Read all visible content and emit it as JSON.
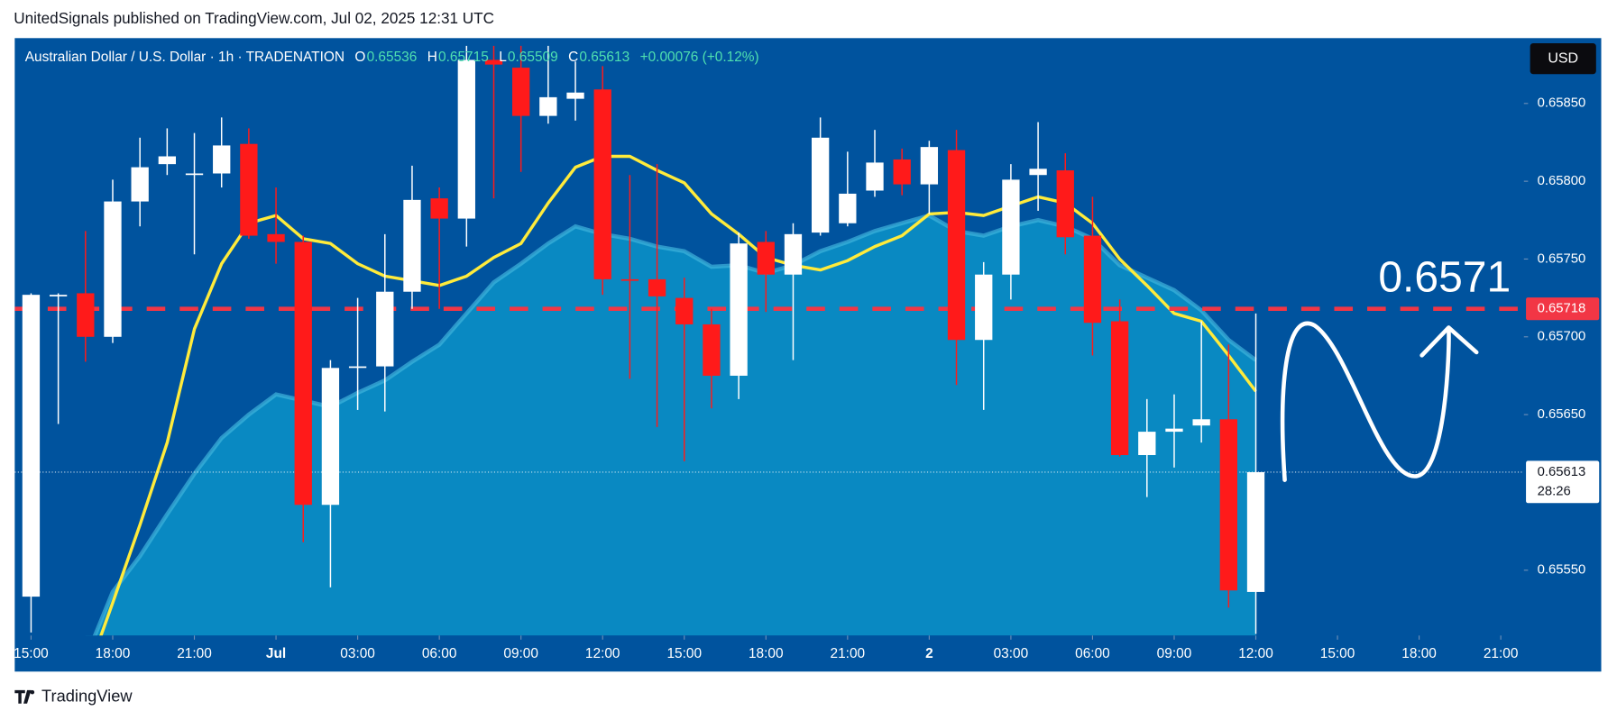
{
  "header": {
    "title": "UnitedSignals published on TradingView.com, Jul 02, 2025 12:31 UTC"
  },
  "chart_data": {
    "type": "candlestick",
    "symbol": "Australian Dollar / U.S. Dollar · 1h · TRADENATION",
    "ohlc": [
      {
        "label": "O",
        "value": "0.65536"
      },
      {
        "label": "H",
        "value": "0.65715"
      },
      {
        "label": "L",
        "value": "0.65509"
      },
      {
        "label": "C",
        "value": "0.65613"
      }
    ],
    "change": "+0.00076 (+0.12%)",
    "currency": "USD",
    "up_color": "#ffffff",
    "down_color": "#ff1a1a",
    "x": [
      0,
      1,
      2,
      3,
      4,
      5,
      6,
      7,
      8,
      9,
      10,
      11,
      12,
      13,
      14,
      15,
      16,
      17,
      18,
      19,
      20,
      21,
      22,
      23,
      24,
      25,
      26,
      27,
      28,
      29,
      30,
      31,
      32,
      33,
      34,
      35,
      36,
      37,
      38,
      39,
      40,
      41,
      42,
      43,
      44,
      45
    ],
    "open": [
      0.65533,
      0.65726,
      0.65728,
      0.657,
      0.65787,
      0.65811,
      0.65804,
      0.65805,
      0.65824,
      0.65766,
      0.65761,
      0.65592,
      0.6568,
      0.65681,
      0.65729,
      0.65789,
      0.65776,
      0.65878,
      0.65873,
      0.65842,
      0.65853,
      0.65859,
      0.65737,
      0.65737,
      0.65725,
      0.65708,
      0.65675,
      0.65761,
      0.6574,
      0.65767,
      0.65773,
      0.65794,
      0.65814,
      0.65798,
      0.6582,
      0.65698,
      0.6574,
      0.65804,
      0.65807,
      0.65765,
      0.6571,
      0.65624,
      0.65639,
      0.65643,
      0.65647,
      0.65536
    ],
    "high": [
      0.65728,
      0.65728,
      0.65768,
      0.65801,
      0.65828,
      0.65834,
      0.65831,
      0.65841,
      0.65834,
      0.65796,
      0.65765,
      0.65685,
      0.65725,
      0.65766,
      0.6581,
      0.65796,
      0.65887,
      0.65887,
      0.65887,
      0.65887,
      0.65877,
      0.65874,
      0.65804,
      0.65811,
      0.65738,
      0.65718,
      0.65767,
      0.65768,
      0.65773,
      0.65841,
      0.65819,
      0.65833,
      0.65821,
      0.65826,
      0.65833,
      0.65748,
      0.65811,
      0.65838,
      0.65818,
      0.6579,
      0.65724,
      0.6566,
      0.65663,
      0.6571,
      0.65695,
      0.65715
    ],
    "low": [
      0.6551,
      0.65644,
      0.65684,
      0.65696,
      0.65771,
      0.65804,
      0.65753,
      0.65796,
      0.65763,
      0.65747,
      0.65568,
      0.65539,
      0.65653,
      0.65652,
      0.65718,
      0.65718,
      0.65758,
      0.65789,
      0.65806,
      0.65837,
      0.65839,
      0.65727,
      0.65673,
      0.65642,
      0.6562,
      0.65654,
      0.6566,
      0.65716,
      0.65685,
      0.65765,
      0.65771,
      0.6579,
      0.65791,
      0.65779,
      0.65669,
      0.65653,
      0.65724,
      0.65781,
      0.65753,
      0.65688,
      0.65623,
      0.65597,
      0.65616,
      0.65632,
      0.65526,
      0.65509
    ],
    "close": [
      0.65727,
      0.65727,
      0.657,
      0.65787,
      0.65809,
      0.65816,
      0.65805,
      0.65823,
      0.65765,
      0.65761,
      0.65592,
      0.6568,
      0.65681,
      0.65729,
      0.65788,
      0.65776,
      0.65878,
      0.65875,
      0.65842,
      0.65854,
      0.65857,
      0.65737,
      0.65736,
      0.65726,
      0.65708,
      0.65675,
      0.6576,
      0.6574,
      0.65766,
      0.65828,
      0.65792,
      0.65812,
      0.65798,
      0.65822,
      0.65698,
      0.6574,
      0.65801,
      0.65808,
      0.65764,
      0.65709,
      0.65624,
      0.65639,
      0.65641,
      0.65647,
      0.65537,
      0.65613
    ],
    "indicators": [
      {
        "kind": "area",
        "color": "#3fb4dc",
        "fill": "#0a93c8",
        "values": [
          null,
          null,
          0.65493,
          0.65536,
          0.65559,
          0.65586,
          0.65612,
          0.65635,
          0.6565,
          0.65663,
          0.65659,
          0.65655,
          0.65664,
          0.65672,
          0.65684,
          0.65695,
          0.65715,
          0.65735,
          0.65747,
          0.6576,
          0.65771,
          0.65766,
          0.65763,
          0.65758,
          0.65755,
          0.65745,
          0.65746,
          0.65741,
          0.65746,
          0.65755,
          0.65761,
          0.65768,
          0.65773,
          0.65778,
          0.65768,
          0.65765,
          0.65771,
          0.65775,
          0.65771,
          0.65763,
          0.65746,
          0.65738,
          0.6573,
          0.65717,
          0.65698,
          0.65685
        ]
      },
      {
        "kind": "line",
        "color": "#ffeb3b",
        "values": [
          null,
          null,
          0.6548,
          0.65529,
          0.65579,
          0.65632,
          0.65705,
          0.65747,
          0.65773,
          0.65778,
          0.65763,
          0.6576,
          0.65747,
          0.65739,
          0.65736,
          0.65733,
          0.65739,
          0.65751,
          0.6576,
          0.65786,
          0.65809,
          0.65816,
          0.65816,
          0.65807,
          0.65799,
          0.65779,
          0.65766,
          0.65751,
          0.65746,
          0.65743,
          0.65749,
          0.65758,
          0.65765,
          0.65779,
          0.6578,
          0.65778,
          0.65784,
          0.6579,
          0.65786,
          0.65773,
          0.6575,
          0.65733,
          0.65715,
          0.6571,
          0.65688,
          0.65665
        ]
      }
    ],
    "xlim": [
      -0.6,
      54.85
    ],
    "xticks": [
      {
        "value": 0,
        "label": "15:00"
      },
      {
        "value": 3,
        "label": "18:00"
      },
      {
        "value": 6,
        "label": "21:00"
      },
      {
        "value": 9,
        "label": "Jul"
      },
      {
        "value": 12,
        "label": "03:00"
      },
      {
        "value": 15,
        "label": "06:00"
      },
      {
        "value": 18,
        "label": "09:00"
      },
      {
        "value": 21,
        "label": "12:00"
      },
      {
        "value": 24,
        "label": "15:00"
      },
      {
        "value": 27,
        "label": "18:00"
      },
      {
        "value": 30,
        "label": "21:00"
      },
      {
        "value": 33,
        "label": "2"
      },
      {
        "value": 36,
        "label": "03:00"
      },
      {
        "value": 39,
        "label": "06:00"
      },
      {
        "value": 42,
        "label": "09:00"
      },
      {
        "value": 45,
        "label": "12:00"
      },
      {
        "value": 48,
        "label": "15:00"
      },
      {
        "value": 51,
        "label": "18:00"
      },
      {
        "value": 54,
        "label": "21:00"
      }
    ],
    "ylim": [
      0.65508,
      0.65892
    ],
    "yticks": [
      {
        "value": 0.6585,
        "label": "0.65850"
      },
      {
        "value": 0.658,
        "label": "0.65800"
      },
      {
        "value": 0.6575,
        "label": "0.65750"
      },
      {
        "value": 0.657,
        "label": "0.65700"
      },
      {
        "value": 0.6565,
        "label": "0.65650"
      },
      {
        "value": 0.6555,
        "label": "0.65550"
      }
    ],
    "hline": {
      "value": 0.65718,
      "label": "0.65718",
      "color": "#f23645"
    },
    "last_price": {
      "value": 0.65613,
      "label": "0.65613",
      "countdown": "28:26"
    },
    "annotation": "0.6571"
  },
  "footer": {
    "brand": "TradingView"
  }
}
